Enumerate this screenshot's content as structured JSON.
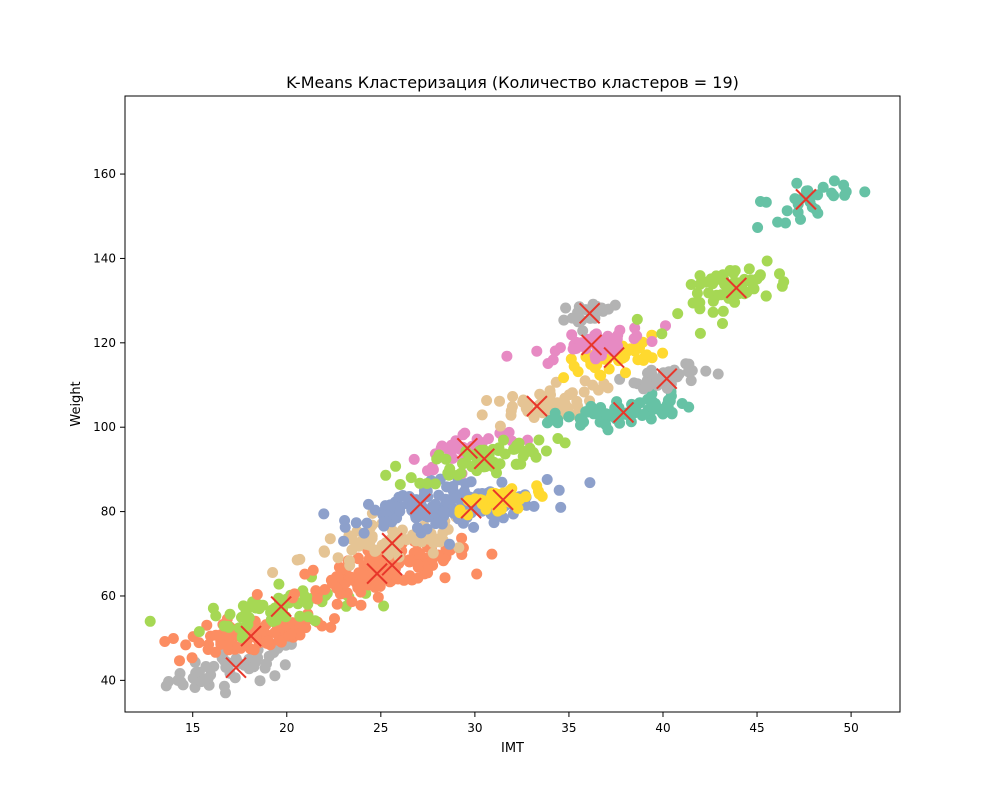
{
  "chart_data": {
    "type": "scatter",
    "title": "K-Means Кластеризация (Количество кластеров = 19)",
    "xlabel": "IMT",
    "ylabel": "Weight",
    "xlim": [
      11.4,
      52.6
    ],
    "ylim": [
      32.5,
      178.5
    ],
    "xticks": [
      15,
      20,
      25,
      30,
      35,
      40,
      45,
      50
    ],
    "yticks": [
      40,
      60,
      80,
      100,
      120,
      140,
      160
    ],
    "grid": false,
    "legend": "none",
    "centroid_color": "#e8362a",
    "clusters": [
      {
        "color": "#b3b3b3",
        "centroid": [
          17.3,
          43.0
        ],
        "spread": [
          1.8,
          2.6
        ],
        "n": 50
      },
      {
        "color": "#fc8d62",
        "centroid": [
          18.1,
          50.5
        ],
        "spread": [
          2.0,
          2.5
        ],
        "n": 90
      },
      {
        "color": "#a6d854",
        "centroid": [
          19.7,
          57.5
        ],
        "spread": [
          2.0,
          3.0
        ],
        "n": 70
      },
      {
        "color": "#fc8d62",
        "centroid": [
          24.8,
          65.3
        ],
        "spread": [
          2.2,
          3.2
        ],
        "n": 80
      },
      {
        "color": "#fc8d62",
        "centroid": [
          25.6,
          67.3
        ],
        "spread": [
          2.0,
          3.0
        ],
        "n": 60
      },
      {
        "color": "#e5c494",
        "centroid": [
          25.6,
          72.5
        ],
        "spread": [
          2.4,
          3.0
        ],
        "n": 70
      },
      {
        "color": "#8da0cb",
        "centroid": [
          27.1,
          81.8
        ],
        "spread": [
          1.8,
          2.6
        ],
        "n": 80
      },
      {
        "color": "#8da0cb",
        "centroid": [
          29.8,
          80.8
        ],
        "spread": [
          2.0,
          2.4
        ],
        "n": 90
      },
      {
        "color": "#ffd92f",
        "centroid": [
          31.5,
          82.8
        ],
        "spread": [
          1.1,
          2.0
        ],
        "n": 50
      },
      {
        "color": "#e78ac3",
        "centroid": [
          29.6,
          95.0
        ],
        "spread": [
          1.5,
          2.5
        ],
        "n": 40
      },
      {
        "color": "#a6d854",
        "centroid": [
          30.5,
          92.5
        ],
        "spread": [
          1.8,
          2.5
        ],
        "n": 70
      },
      {
        "color": "#e5c494",
        "centroid": [
          33.3,
          105.0
        ],
        "spread": [
          1.6,
          2.5
        ],
        "n": 50
      },
      {
        "color": "#66c2a5",
        "centroid": [
          37.9,
          103.5
        ],
        "spread": [
          1.8,
          2.0
        ],
        "n": 70
      },
      {
        "color": "#b3b3b3",
        "centroid": [
          40.2,
          111.5
        ],
        "spread": [
          1.2,
          1.8
        ],
        "n": 40
      },
      {
        "color": "#ffd92f",
        "centroid": [
          37.4,
          116.5
        ],
        "spread": [
          1.2,
          2.0
        ],
        "n": 40
      },
      {
        "color": "#e78ac3",
        "centroid": [
          36.2,
          119.5
        ],
        "spread": [
          1.5,
          1.8
        ],
        "n": 50
      },
      {
        "color": "#b3b3b3",
        "centroid": [
          36.1,
          127.0
        ],
        "spread": [
          0.8,
          1.5
        ],
        "n": 20
      },
      {
        "color": "#a6d854",
        "centroid": [
          43.9,
          133.0
        ],
        "spread": [
          1.4,
          3.5
        ],
        "n": 60
      },
      {
        "color": "#66c2a5",
        "centroid": [
          47.6,
          154.0
        ],
        "spread": [
          1.2,
          2.5
        ],
        "n": 30
      }
    ]
  }
}
